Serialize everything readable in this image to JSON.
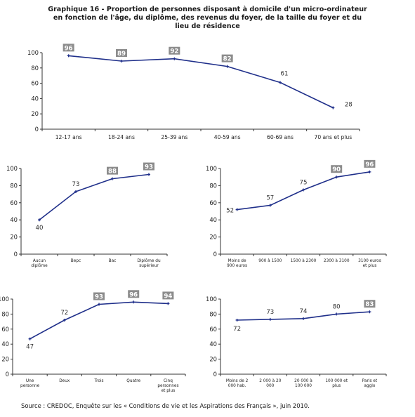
{
  "title": {
    "line1": "Graphique 16 - Proportion de personnes disposant à domicile d'un micro-ordinateur",
    "line2": "en fonction de l'âge, du diplôme, des revenus du foyer, de la taille du foyer et du",
    "line3": "lieu de résidence"
  },
  "source": "Source : CREDOC, Enquête sur les « Conditions de vie et les Aspirations des Français », juin 2010.",
  "colors": {
    "line": "#1f2f8a",
    "highlight_box": "#8c8c8c",
    "axis": "#333333"
  },
  "chart_data": [
    {
      "type": "line",
      "categories": [
        "12-17 ans",
        "18-24 ans",
        "25-39 ans",
        "40-59 ans",
        "60-69 ans",
        "70 ans et plus"
      ],
      "values": [
        96,
        89,
        92,
        82,
        61,
        28
      ],
      "highlighted": [
        true,
        true,
        true,
        true,
        false,
        false
      ],
      "yticks": [
        0,
        20,
        40,
        60,
        80,
        100
      ],
      "ylim": [
        0,
        100
      ],
      "grid": false
    },
    {
      "type": "line",
      "categories": [
        "Aucun diplôme",
        "Bepc",
        "Bac",
        "Diplôme du supérieur"
      ],
      "values": [
        40,
        73,
        88,
        93
      ],
      "highlighted": [
        false,
        false,
        true,
        true
      ],
      "yticks": [
        0,
        20,
        40,
        60,
        80,
        100
      ],
      "ylim": [
        0,
        100
      ],
      "grid": false
    },
    {
      "type": "line",
      "categories": [
        "Moins de 900 euros",
        "900 à 1500",
        "1500 à 2300",
        "2300 à 3100",
        "3100 euros et plus"
      ],
      "values": [
        52,
        57,
        75,
        90,
        96
      ],
      "highlighted": [
        false,
        false,
        false,
        true,
        true
      ],
      "yticks": [
        0,
        20,
        40,
        60,
        80,
        100
      ],
      "ylim": [
        0,
        100
      ],
      "grid": false
    },
    {
      "type": "line",
      "categories": [
        "Une personne",
        "Deux",
        "Trois",
        "Quatre",
        "Cinq personnes et plus"
      ],
      "values": [
        47,
        72,
        93,
        96,
        94
      ],
      "highlighted": [
        false,
        false,
        true,
        true,
        true
      ],
      "yticks": [
        0,
        20,
        40,
        60,
        80,
        100
      ],
      "ylim": [
        0,
        100
      ],
      "grid": false
    },
    {
      "type": "line",
      "categories": [
        "Moins de 2 000 hab.",
        "2 000 à 20 000",
        "20 000 à 100 000",
        "100 000 et plus",
        "Paris et agglo"
      ],
      "values": [
        72,
        73,
        74,
        80,
        83
      ],
      "highlighted": [
        false,
        false,
        false,
        false,
        true
      ],
      "yticks": [
        0,
        20,
        40,
        60,
        80,
        100
      ],
      "ylim": [
        0,
        100
      ],
      "grid": false
    }
  ]
}
